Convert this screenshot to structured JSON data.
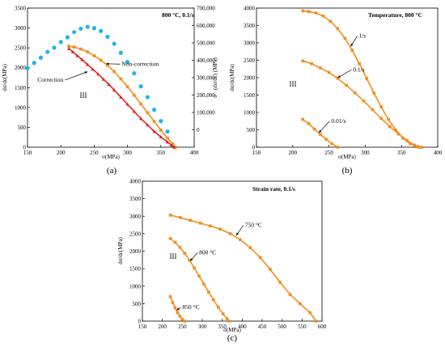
{
  "colors": {
    "orange": "#f28c1e",
    "red": "#e0201b",
    "blue": "#22b4ea",
    "axis": "#000000"
  },
  "chart_data": [
    {
      "panel": "(a)",
      "type": "line",
      "condition": "800 °C, 0.1/s",
      "xlabel": "σ(MPa)",
      "ylabel": "dσ/dε(MPa)",
      "y2label": "σ · (dσ/dε) (MPa)",
      "xlim": [
        150,
        400
      ],
      "xticks": [
        150,
        200,
        250,
        300,
        350,
        400
      ],
      "ylim": [
        0,
        3500
      ],
      "yticks": [
        0,
        500,
        1000,
        1500,
        2000,
        2500,
        3000,
        3500
      ],
      "y2lim": [
        -100000,
        700000
      ],
      "y2ticks": [
        0,
        100000,
        200000,
        300000,
        400000,
        500000,
        600000,
        700000
      ],
      "y2ticklabels": [
        "0",
        "100,000",
        "200,000",
        "300,000",
        "400,000",
        "500,000",
        "600,000",
        "700,000"
      ],
      "region_label": "III",
      "annotations": [
        {
          "text": "Non-correction",
          "series": "Non-correction",
          "at": [
            268,
            2100
          ],
          "text_at": [
            290,
            2050
          ]
        },
        {
          "text": "Correction",
          "series": "Correction",
          "at": [
            240,
            1900
          ],
          "text_at": [
            205,
            1650
          ]
        }
      ],
      "series": [
        {
          "name": "Non-correction",
          "color": "orange",
          "axis": "left",
          "marker": "square",
          "x": [
            212,
            220,
            230,
            240,
            250,
            260,
            270,
            280,
            290,
            300,
            310,
            320,
            330,
            340,
            350,
            360,
            368,
            372
          ],
          "y": [
            2540,
            2520,
            2470,
            2400,
            2300,
            2190,
            2060,
            1900,
            1720,
            1520,
            1310,
            1090,
            870,
            650,
            430,
            230,
            80,
            0
          ]
        },
        {
          "name": "Correction",
          "color": "red",
          "axis": "left",
          "marker": "triangle",
          "x": [
            212,
            218,
            225,
            232,
            240,
            248,
            256,
            264,
            272,
            280,
            290,
            300,
            310,
            320,
            330,
            340,
            350,
            360,
            366,
            370
          ],
          "y": [
            2480,
            2400,
            2300,
            2200,
            2080,
            1960,
            1840,
            1710,
            1580,
            1440,
            1260,
            1080,
            900,
            720,
            560,
            400,
            260,
            130,
            50,
            0
          ]
        },
        {
          "name": "σ·(dσ/dε)",
          "color": "blue",
          "axis": "right",
          "marker": "circle",
          "x": [
            150,
            160,
            170,
            180,
            190,
            200,
            210,
            220,
            230,
            240,
            250,
            260,
            270,
            280,
            290,
            300,
            310,
            320,
            330,
            340,
            350,
            360
          ],
          "y": [
            355000,
            385000,
            415000,
            448000,
            472000,
            505000,
            532000,
            562000,
            582000,
            592000,
            585000,
            568000,
            535000,
            495000,
            443000,
            390000,
            325000,
            250000,
            188000,
            115000,
            50000,
            -10000
          ]
        }
      ]
    },
    {
      "panel": "(b)",
      "type": "line",
      "condition": "Temperature, 800 °C",
      "xlabel": "σ(MPa)",
      "ylabel": "dσ/dε(MPa)",
      "xlim": [
        150,
        400
      ],
      "xticks": [
        150,
        200,
        250,
        300,
        350,
        400
      ],
      "ylim": [
        0,
        4000
      ],
      "yticks": [
        0,
        500,
        1000,
        1500,
        2000,
        2500,
        3000,
        3500,
        4000
      ],
      "region_label": "III",
      "series": [
        {
          "name": "1/s",
          "color": "orange",
          "marker": "square",
          "x": [
            214,
            222,
            232,
            242,
            252,
            262,
            272,
            282,
            292,
            302,
            312,
            322,
            332,
            342,
            352,
            362,
            372,
            378
          ],
          "y": [
            3920,
            3900,
            3860,
            3770,
            3620,
            3410,
            3130,
            2790,
            2400,
            1980,
            1560,
            1160,
            800,
            500,
            260,
            100,
            20,
            0
          ]
        },
        {
          "name": "0.1/s",
          "color": "orange",
          "marker": "square",
          "x": [
            214,
            226,
            238,
            250,
            262,
            274,
            286,
            298,
            310,
            322,
            334,
            346,
            358,
            368,
            374
          ],
          "y": [
            2480,
            2400,
            2280,
            2150,
            1980,
            1780,
            1560,
            1330,
            1080,
            830,
            590,
            380,
            190,
            60,
            0
          ]
        },
        {
          "name": "0.01/s",
          "color": "orange",
          "marker": "square",
          "x": [
            214,
            222,
            230,
            238,
            246,
            254,
            262
          ],
          "y": [
            800,
            680,
            520,
            370,
            230,
            100,
            0
          ]
        }
      ],
      "annotations": [
        {
          "text": "1/s",
          "series": "1/s",
          "at": [
            280,
            2900
          ],
          "text_at": [
            290,
            3150
          ]
        },
        {
          "text": "0.1/s",
          "series": "0.1/s",
          "at": [
            262,
            2000
          ],
          "text_at": [
            282,
            2180
          ]
        },
        {
          "text": "0.01/s",
          "series": "0.01/s",
          "at": [
            236,
            420
          ],
          "text_at": [
            252,
            700
          ]
        }
      ]
    },
    {
      "panel": "(c)",
      "type": "line",
      "condition": "Strain rate, 0.1/s",
      "xlabel": "σ(MPa)",
      "ylabel": "dσ/dε(MPa)",
      "xlim": [
        150,
        600
      ],
      "xticks": [
        150,
        200,
        250,
        300,
        350,
        400,
        450,
        500,
        550,
        600
      ],
      "ylim": [
        0,
        4000
      ],
      "yticks": [
        0,
        500,
        1000,
        1500,
        2000,
        2500,
        3000,
        3500,
        4000
      ],
      "region_label": "III",
      "series": [
        {
          "name": "750 °C",
          "color": "orange",
          "marker": "square",
          "x": [
            220,
            245,
            270,
            295,
            320,
            345,
            370,
            395,
            420,
            445,
            470,
            495,
            520,
            545,
            570,
            585
          ],
          "y": [
            3030,
            2960,
            2880,
            2800,
            2720,
            2630,
            2500,
            2330,
            2100,
            1820,
            1480,
            1110,
            760,
            500,
            240,
            0
          ]
        },
        {
          "name": "800 °C",
          "color": "orange",
          "marker": "square",
          "x": [
            220,
            232,
            244,
            256,
            268,
            280,
            292,
            304,
            316,
            328,
            340,
            352,
            362,
            368
          ],
          "y": [
            2360,
            2250,
            2110,
            1940,
            1740,
            1520,
            1290,
            1060,
            830,
            610,
            400,
            210,
            70,
            0
          ]
        },
        {
          "name": "850 °C",
          "color": "orange",
          "marker": "square",
          "x": [
            220,
            226,
            232,
            238,
            244,
            250,
            256
          ],
          "y": [
            700,
            530,
            380,
            250,
            140,
            50,
            0
          ]
        }
      ],
      "annotations": [
        {
          "text": "750 °C",
          "series": "750 °C",
          "at": [
            385,
            2450
          ],
          "text_at": [
            405,
            2690
          ]
        },
        {
          "text": "800 °C",
          "series": "800 °C",
          "at": [
            270,
            1720
          ],
          "text_at": [
            290,
            1910
          ]
        },
        {
          "text": "850 °C",
          "series": "850 °C",
          "at": [
            236,
            310
          ],
          "text_at": [
            248,
            350
          ]
        }
      ]
    }
  ]
}
